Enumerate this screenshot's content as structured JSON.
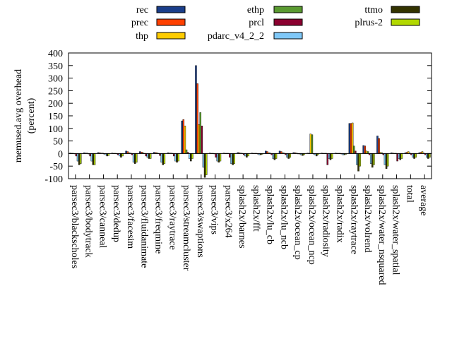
{
  "chart_data": {
    "type": "bar",
    "ylabel_line1": "memused.avg overhead",
    "ylabel_line2": "(percent)",
    "ylim": [
      -100,
      400
    ],
    "yticks": [
      -100,
      -50,
      0,
      50,
      100,
      150,
      200,
      250,
      300,
      350,
      400
    ],
    "ytick_labels": [
      "-100",
      "-50",
      "0",
      "50",
      "100",
      "150",
      "200",
      "250",
      "300",
      "350",
      "400"
    ],
    "grid": false,
    "legend_position": "top",
    "categories": [
      "parsec3/blackscholes",
      "parsec3/bodytrack",
      "parsec3/canneal",
      "parsec3/dedup",
      "parsec3/facesim",
      "parsec3/fluidanimate",
      "parsec3/freqmine",
      "parsec3/raytrace",
      "parsec3/streamcluster",
      "parsec3/swaptions",
      "parsec3/vips",
      "parsec3/x264",
      "splash2x/barnes",
      "splash2x/fft",
      "splash2x/lu_cb",
      "splash2x/lu_ncb",
      "splash2x/ocean_cp",
      "splash2x/ocean_ncp",
      "splash2x/radiosity",
      "splash2x/radix",
      "splash2x/raytrace",
      "splash2x/volrend",
      "splash2x/water_nsquared",
      "splash2x/water_spatial",
      "total",
      "average"
    ],
    "series": [
      {
        "name": "rec",
        "color": "#1a3e8a",
        "values": [
          2,
          3,
          4,
          2,
          10,
          8,
          5,
          3,
          130,
          350,
          2,
          2,
          4,
          2,
          10,
          10,
          4,
          2,
          2,
          2,
          120,
          32,
          70,
          3,
          3,
          3
        ]
      },
      {
        "name": "prec",
        "color": "#ff4000",
        "values": [
          1,
          2,
          3,
          1,
          8,
          6,
          4,
          2,
          135,
          278,
          1,
          1,
          3,
          1,
          8,
          8,
          3,
          1,
          1,
          1,
          120,
          30,
          60,
          2,
          5,
          5
        ]
      },
      {
        "name": "thp",
        "color": "#ffcc00",
        "values": [
          1,
          2,
          2,
          1,
          3,
          3,
          3,
          2,
          110,
          115,
          1,
          1,
          2,
          1,
          3,
          3,
          2,
          78,
          1,
          1,
          122,
          10,
          5,
          1,
          8,
          8
        ]
      },
      {
        "name": "ethp",
        "color": "#5a9a30",
        "values": [
          -1,
          -2,
          2,
          -1,
          2,
          1,
          1,
          1,
          15,
          163,
          -1,
          1,
          1,
          1,
          2,
          2,
          -1,
          75,
          1,
          1,
          30,
          8,
          3,
          1,
          2,
          2
        ]
      },
      {
        "name": "prcl",
        "color": "#8b0030",
        "values": [
          -10,
          -10,
          -2,
          -5,
          -5,
          -10,
          -8,
          -10,
          5,
          110,
          -15,
          -15,
          -5,
          -2,
          -5,
          -5,
          -2,
          -2,
          -45,
          -2,
          10,
          -5,
          -5,
          -30,
          -5,
          -5
        ]
      },
      {
        "name": "pdarc_v4_2_2",
        "color": "#7fc8f8",
        "values": [
          -30,
          -30,
          -5,
          -10,
          -35,
          -15,
          -35,
          -30,
          -20,
          -55,
          -30,
          -40,
          -10,
          -5,
          -20,
          -15,
          -5,
          -5,
          -20,
          -5,
          -45,
          -40,
          -45,
          -20,
          -15,
          -15
        ]
      },
      {
        "name": "ttmo",
        "color": "#333300",
        "values": [
          -45,
          -45,
          -10,
          -15,
          -40,
          -20,
          -45,
          -35,
          -30,
          -95,
          -35,
          -45,
          -15,
          -5,
          -25,
          -20,
          -8,
          -10,
          -25,
          -5,
          -70,
          -55,
          -60,
          -25,
          -20,
          -20
        ]
      },
      {
        "name": "plrus-2",
        "color": "#b2d800",
        "values": [
          -40,
          -45,
          -8,
          -10,
          -35,
          -20,
          -40,
          -30,
          -20,
          -85,
          -30,
          -40,
          -10,
          -3,
          -20,
          -15,
          -5,
          -5,
          -20,
          -3,
          -50,
          -45,
          -50,
          -20,
          -15,
          -15
        ]
      }
    ]
  }
}
